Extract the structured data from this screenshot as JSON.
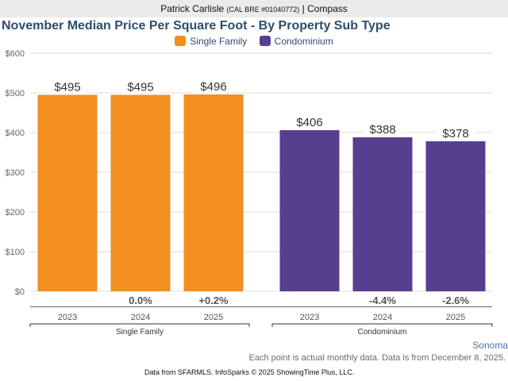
{
  "header": {
    "agent_name": "Patrick Carlisle",
    "license": "(CAL BRE #01040772)",
    "separator": "|",
    "brokerage": "Compass"
  },
  "colors": {
    "single_family": "#f18f21",
    "condominium": "#573f8f"
  },
  "footer": {
    "region": "Sonoma",
    "note": "Each point is actual monthly data. Data is from December 8, 2025.",
    "credit": "Data from SFARMLS. InfoSparks © 2025 ShowingTime Plus, LLC."
  },
  "chart_data": {
    "type": "bar",
    "title": "November Median Price Per Square Foot - By Property Sub Type",
    "xlabel": "",
    "ylabel": "",
    "ylim": [
      0,
      600
    ],
    "yticks": [
      0,
      100,
      200,
      300,
      400,
      500,
      600
    ],
    "ytick_labels": [
      "$0",
      "$100",
      "$200",
      "$300",
      "$400",
      "$500",
      "$600"
    ],
    "grid": true,
    "legend": {
      "placement": "top-center",
      "entries": [
        "Single Family",
        "Condominium"
      ]
    },
    "groups": [
      {
        "name": "Single Family",
        "categories": [
          "2023",
          "2024",
          "2025"
        ],
        "values": [
          495,
          495,
          496
        ],
        "value_labels": [
          "$495",
          "$495",
          "$496"
        ],
        "change_labels": [
          "",
          "0.0%",
          "+0.2%"
        ]
      },
      {
        "name": "Condominium",
        "categories": [
          "2023",
          "2024",
          "2025"
        ],
        "values": [
          406,
          388,
          378
        ],
        "value_labels": [
          "$406",
          "$388",
          "$378"
        ],
        "change_labels": [
          "",
          "-4.4%",
          "-2.6%"
        ]
      }
    ]
  }
}
